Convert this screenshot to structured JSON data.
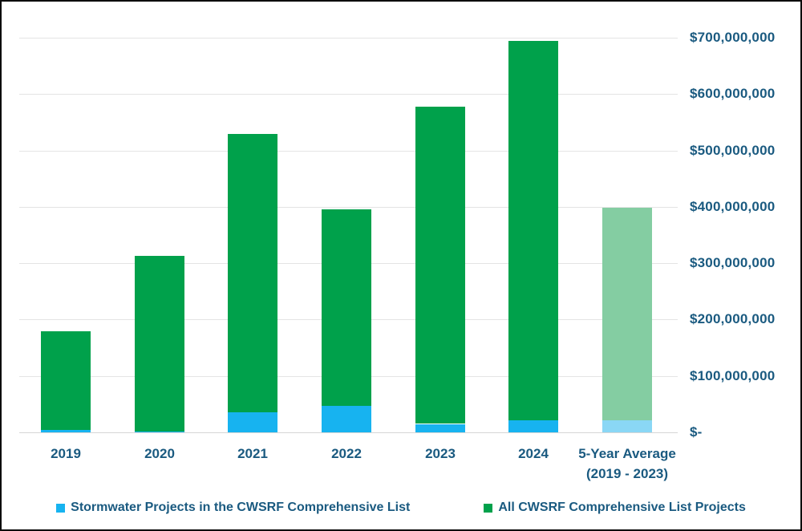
{
  "window": {
    "background_color": "#ffffff",
    "border_color": "#0a0a0a"
  },
  "chart_data": {
    "type": "bar",
    "stacked": true,
    "title": "",
    "xlabel": "",
    "ylabel": "",
    "ylim": [
      0,
      700000000
    ],
    "ytick_interval": 100000000,
    "grid": "horizontal-only",
    "legend_position": "bottom-center",
    "axis_text_color": "#1a5a80",
    "gridline_color": "#e4e4e4",
    "baseline_color": "#d6d6d6",
    "yticks": [
      {
        "value": 700000000,
        "label": "$700,000,000"
      },
      {
        "value": 600000000,
        "label": "$600,000,000"
      },
      {
        "value": 500000000,
        "label": "$500,000,000"
      },
      {
        "value": 400000000,
        "label": "$400,000,000"
      },
      {
        "value": 300000000,
        "label": "$300,000,000"
      },
      {
        "value": 200000000,
        "label": "$200,000,000"
      },
      {
        "value": 100000000,
        "label": "$100,000,000"
      },
      {
        "value": 0,
        "label": "$-"
      }
    ],
    "series": [
      {
        "key": "stormwater",
        "name": "Stormwater Projects in the CWSRF Comprehensive List",
        "color": "#17b3f0",
        "muted_color": "#8ad7f5"
      },
      {
        "key": "all_projects",
        "name": "All CWSRF Comprehensive List Projects",
        "color": "#00a14b",
        "muted_color": "#84cda2"
      }
    ],
    "categories": [
      {
        "label_lines": [
          "2019"
        ],
        "stormwater": 5000000,
        "all_projects": 180000000,
        "muted": false
      },
      {
        "label_lines": [
          "2020"
        ],
        "stormwater": 2000000,
        "all_projects": 313000000,
        "muted": false
      },
      {
        "label_lines": [
          "2021"
        ],
        "stormwater": 35000000,
        "all_projects": 530000000,
        "muted": false
      },
      {
        "label_lines": [
          "2022"
        ],
        "stormwater": 47000000,
        "all_projects": 396000000,
        "muted": false
      },
      {
        "label_lines": [
          "2023"
        ],
        "stormwater": 15000000,
        "all_projects": 578000000,
        "muted": false
      },
      {
        "label_lines": [
          "2024"
        ],
        "stormwater": 21000000,
        "all_projects": 695000000,
        "muted": false
      },
      {
        "label_lines": [
          "5-Year Average",
          "(2019 - 2023)"
        ],
        "stormwater": 21000000,
        "all_projects": 399000000,
        "muted": true
      }
    ]
  }
}
